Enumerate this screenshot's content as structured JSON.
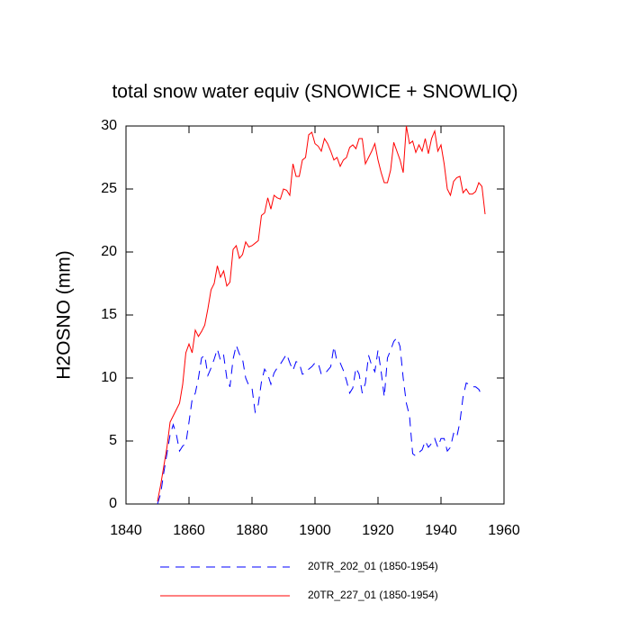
{
  "chart_data": {
    "type": "line",
    "title": "total snow water equiv (SNOWICE + SNOWLIQ)",
    "y_label": "H2OSNO  (mm)",
    "x": [
      1850,
      1851,
      1852,
      1853,
      1854,
      1855,
      1856,
      1857,
      1858,
      1859,
      1860,
      1861,
      1862,
      1863,
      1864,
      1865,
      1866,
      1867,
      1868,
      1869,
      1870,
      1871,
      1872,
      1873,
      1874,
      1875,
      1876,
      1877,
      1878,
      1879,
      1880,
      1881,
      1882,
      1883,
      1884,
      1885,
      1886,
      1887,
      1888,
      1889,
      1890,
      1891,
      1892,
      1893,
      1894,
      1895,
      1896,
      1897,
      1898,
      1899,
      1900,
      1901,
      1902,
      1903,
      1904,
      1905,
      1906,
      1907,
      1908,
      1909,
      1910,
      1911,
      1912,
      1913,
      1914,
      1915,
      1916,
      1917,
      1918,
      1919,
      1920,
      1921,
      1922,
      1923,
      1924,
      1925,
      1926,
      1927,
      1928,
      1929,
      1930,
      1931,
      1932,
      1933,
      1934,
      1935,
      1936,
      1937,
      1938,
      1939,
      1940,
      1941,
      1942,
      1943,
      1944,
      1945,
      1946,
      1947,
      1948,
      1949,
      1950,
      1951,
      1952,
      1953,
      1954
    ],
    "series": [
      {
        "name": "20TR_202_01 (1850-1954)",
        "color": "#0000ff",
        "dash": true,
        "values": [
          0,
          0.8,
          2.5,
          4,
          5.5,
          6.3,
          5.5,
          4.2,
          4.6,
          4.8,
          6.5,
          8.3,
          8.8,
          10,
          11.6,
          11.8,
          10.2,
          10.8,
          11.5,
          12.3,
          11.4,
          11.8,
          10,
          9.3,
          11.5,
          12.6,
          11.9,
          11.5,
          10,
          9.4,
          9.2,
          7.3,
          7.9,
          9.7,
          10.7,
          10.3,
          9.5,
          10.4,
          10.8,
          11.1,
          11.5,
          11.9,
          11.2,
          10.6,
          11.3,
          11.2,
          10.3,
          10.4,
          10.7,
          10.9,
          11.2,
          11.2,
          10.3,
          10.3,
          10.6,
          10.9,
          12.5,
          11.3,
          11.2,
          10.6,
          9.8,
          8.8,
          9.2,
          10.8,
          10.3,
          8.8,
          9.6,
          11.8,
          11,
          10.5,
          12.2,
          10.5,
          8.5,
          11.6,
          12.2,
          12.9,
          13.2,
          12.5,
          10,
          8,
          7,
          4,
          3.8,
          4.1,
          4.3,
          5,
          4.5,
          4.8,
          5.2,
          4.5,
          5.2,
          5.2,
          4.2,
          4.5,
          5.6,
          5.3,
          6.5,
          8.5,
          9.6,
          9.5,
          9.3,
          9.3,
          9.1,
          8.6,
          null
        ]
      },
      {
        "name": "20TR_227_01 (1850-1954)",
        "color": "#ff0000",
        "dash": false,
        "values": [
          0.2,
          1.5,
          3,
          4.5,
          6.5,
          7,
          7.5,
          8,
          9.5,
          12,
          12.7,
          12,
          13.8,
          13.3,
          13.7,
          14.2,
          15.5,
          17,
          17.5,
          18.9,
          18,
          18.5,
          17.3,
          17.6,
          20.2,
          20.5,
          19.5,
          19.8,
          20.8,
          20.4,
          20.5,
          20.7,
          20.9,
          22.9,
          23.1,
          24.3,
          23.4,
          24.5,
          24.3,
          24.2,
          25,
          24.9,
          24.5,
          27,
          26,
          26,
          27.3,
          27.5,
          29.3,
          29.5,
          28.6,
          28.4,
          28,
          29,
          28.6,
          28,
          27.3,
          27.5,
          26.8,
          27.3,
          27.5,
          28.3,
          28.5,
          28.2,
          29,
          29,
          27,
          27.5,
          28,
          28.6,
          27.3,
          26.3,
          25.5,
          25.5,
          26.5,
          28.7,
          28,
          27.3,
          26.3,
          30,
          28.6,
          28.8,
          27.9,
          28.5,
          28,
          29,
          27.8,
          29,
          29.6,
          28,
          28.5,
          27,
          25,
          24.5,
          25.6,
          25.9,
          26,
          24.7,
          25,
          24.6,
          24.6,
          24.8,
          25.5,
          25.2,
          23
        ]
      }
    ],
    "xlim": [
      1840,
      1960
    ],
    "xticks": [
      1840,
      1860,
      1880,
      1900,
      1920,
      1940,
      1960
    ],
    "ylim": [
      0,
      30
    ],
    "yticks": [
      0,
      5,
      10,
      15,
      20,
      25,
      30
    ]
  }
}
